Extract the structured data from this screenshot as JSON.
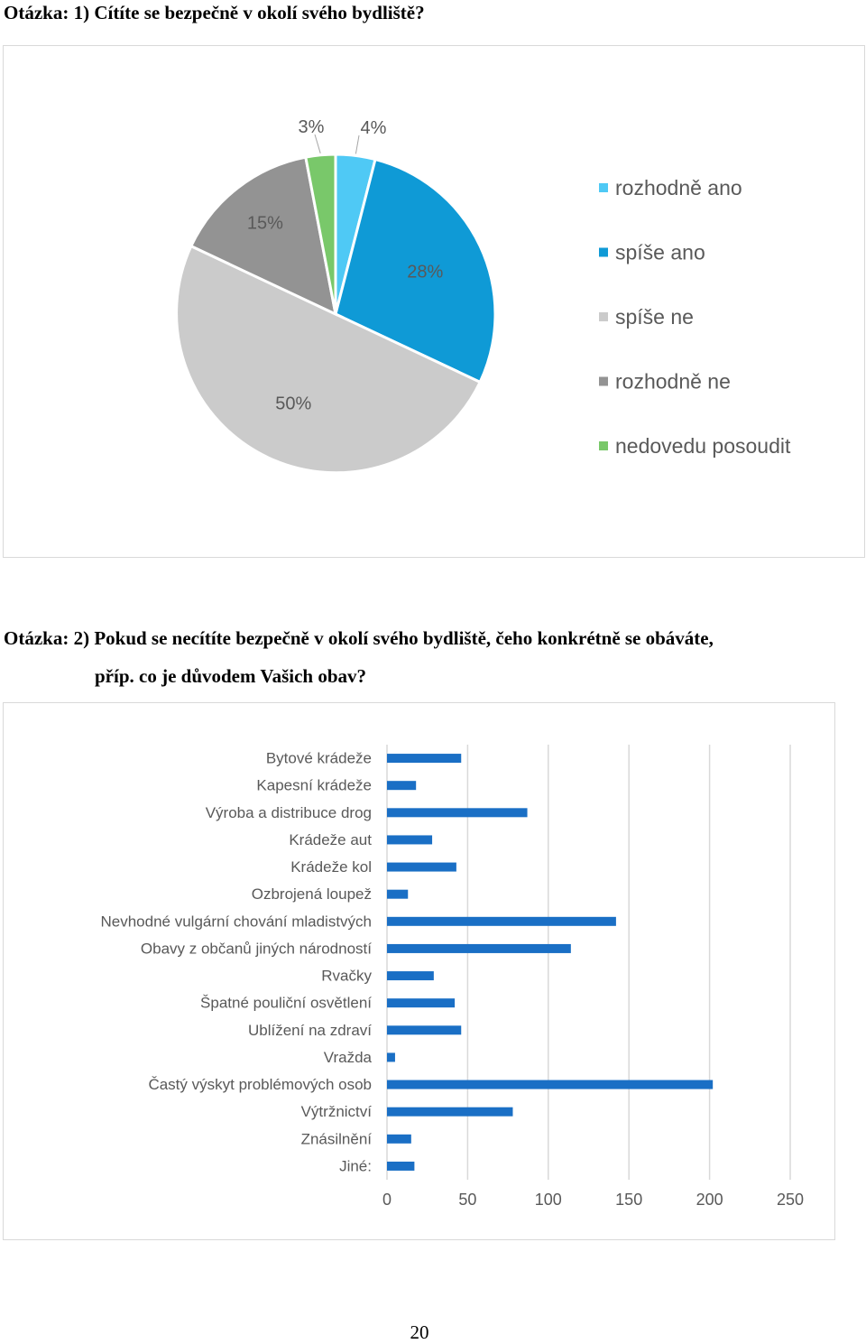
{
  "question1": {
    "title": "Otázka: 1) Cítíte se bezpečně v okolí svého bydliště?"
  },
  "question2": {
    "title_line1": "Otázka: 2) Pokud se necítíte bezpečně v okolí svého bydliště, čeho konkrétně se obáváte,",
    "title_line2": "příp. co je důvodem Vašich obav?"
  },
  "page_number": "20",
  "chart_data": [
    {
      "type": "pie",
      "legend_position": "right",
      "slices": [
        {
          "label": "rozhodně ano",
          "value": 4,
          "value_label": "4%",
          "color": "#4fc9f5"
        },
        {
          "label": "spíše ano",
          "value": 28,
          "value_label": "28%",
          "color": "#0f9ad6"
        },
        {
          "label": "spíše ne",
          "value": 50,
          "value_label": "50%",
          "color": "#cbcbcb"
        },
        {
          "label": "rozhodně ne",
          "value": 15,
          "value_label": "15%",
          "color": "#939393"
        },
        {
          "label": "nedovedu posoudit",
          "value": 3,
          "value_label": "3%",
          "color": "#79c86a"
        }
      ]
    },
    {
      "type": "bar",
      "orientation": "horizontal",
      "color": "#1a6fc5",
      "categories": [
        "Bytové krádeže",
        "Kapesní krádeže",
        "Výroba a distribuce drog",
        "Krádeže aut",
        "Krádeže kol",
        "Ozbrojená loupež",
        "Nevhodné vulgární chování mladistvých",
        "Obavy z občanů jiných národností",
        "Rvačky",
        "Špatné pouliční osvětlení",
        "Ublížení na zdraví",
        "Vražda",
        "Častý výskyt problémových osob",
        "Výtržnictví",
        "Znásilnění",
        "Jiné:"
      ],
      "values": [
        46,
        18,
        87,
        28,
        43,
        13,
        142,
        114,
        29,
        42,
        46,
        5,
        202,
        78,
        15,
        17
      ],
      "xlim": [
        0,
        250
      ],
      "x_ticks": [
        0,
        50,
        100,
        150,
        200,
        250
      ],
      "grid": true
    }
  ]
}
